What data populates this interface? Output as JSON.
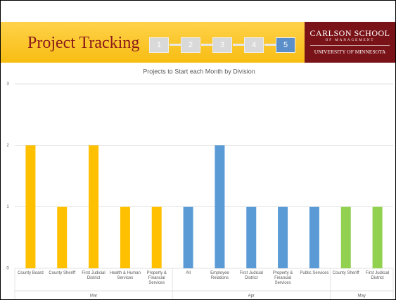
{
  "header": {
    "title": "Project Tracking",
    "steps": [
      "1",
      "2",
      "3",
      "4",
      "5"
    ],
    "logo": [
      "CARLSON SCHOOL",
      "OF MANAGEMENT",
      "UNIVERSITY OF MINNESOTA"
    ]
  },
  "chart_data": {
    "type": "bar",
    "title": "Projects to Start each Month by Division",
    "groups": [
      {
        "name": "Mar",
        "color": "#ffc000",
        "categories": [
          "County Board",
          "County Sheriff",
          "First Judicial District",
          "Health & Human Services",
          "Property & Financial Services"
        ],
        "values": [
          2,
          1,
          2,
          1,
          1
        ]
      },
      {
        "name": "Apr",
        "color": "#5b9bd5",
        "categories": [
          "All",
          "Employee Relations",
          "First Judicial District",
          "Property & Financial Services",
          "Public Services"
        ],
        "values": [
          1,
          2,
          1,
          1,
          1
        ]
      },
      {
        "name": "May",
        "color": "#92d050",
        "categories": [
          "County Sheriff",
          "First Judicial District"
        ],
        "values": [
          1,
          1
        ]
      }
    ],
    "ylim": [
      0,
      3
    ],
    "yticks": [
      0,
      1,
      2,
      3
    ],
    "grid": true
  }
}
